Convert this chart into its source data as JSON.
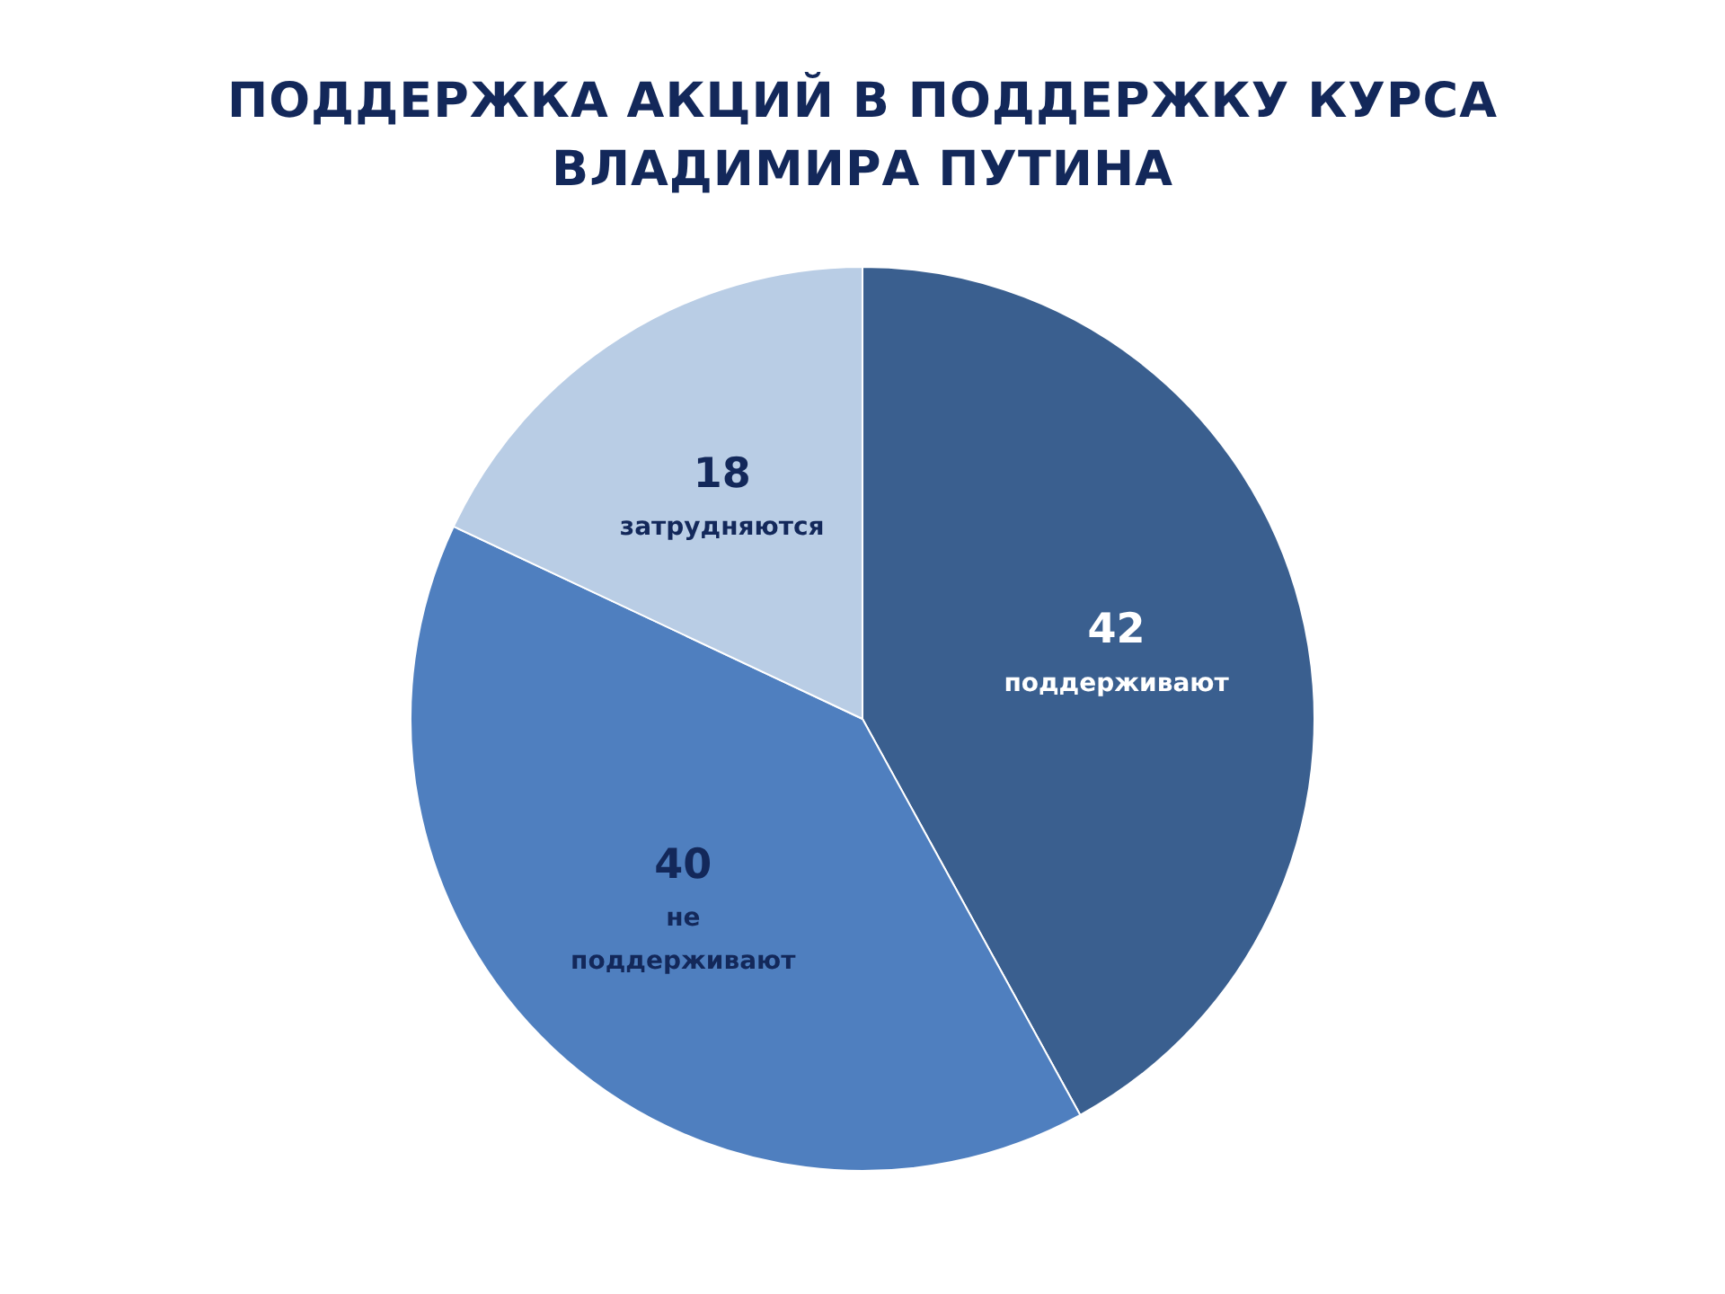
{
  "chart_data": {
    "type": "pie",
    "title": "ПОДДЕРЖКА АКЦИЙ В ПОДДЕРЖКУ КУРСА ВЛАДИМИРА ПУТИНА",
    "categories": [
      "поддерживают",
      "не поддерживают",
      "затрудняются"
    ],
    "values": [
      42,
      40,
      18
    ],
    "colors": [
      "#3a5f8f",
      "#4f7fbf",
      "#b9cde5"
    ],
    "data_labels": true,
    "legend": false
  }
}
